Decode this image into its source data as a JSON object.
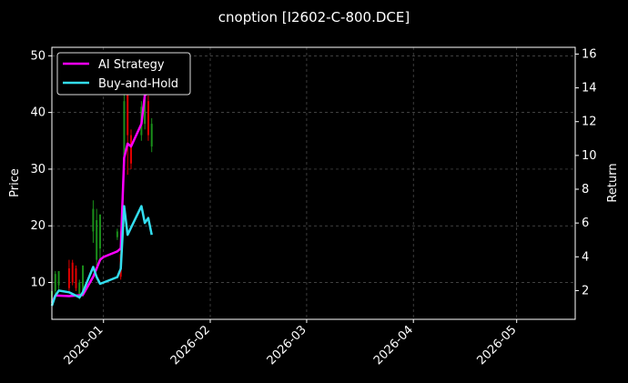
{
  "chart_data": {
    "type": "line",
    "title": "cnoption [I2602-C-800.DCE]",
    "ylabel_left": "Price",
    "ylabel_right": "Return",
    "ylim_left": [
      3.5,
      51.5
    ],
    "ylim_right": [
      0.3,
      16.4
    ],
    "yticks_left": [
      10,
      20,
      30,
      40,
      50
    ],
    "yticks_right": [
      2,
      4,
      6,
      8,
      10,
      12,
      14,
      16
    ],
    "xlim": [
      "2025-12-17",
      "2026-05-18"
    ],
    "xticks": [
      {
        "date": "2026-01-01",
        "label": "2026-01"
      },
      {
        "date": "2026-02-01",
        "label": "2026-02"
      },
      {
        "date": "2026-03-01",
        "label": "2026-03"
      },
      {
        "date": "2026-04-01",
        "label": "2026-04"
      },
      {
        "date": "2026-05-01",
        "label": "2026-05"
      }
    ],
    "grid": true,
    "legend_position": "top-left",
    "candles": [
      {
        "date": "2025-12-17",
        "open": 6.0,
        "close": 8.5,
        "high": 9.0,
        "low": 5.5
      },
      {
        "date": "2025-12-18",
        "open": 8.5,
        "close": 11.5,
        "high": 12.0,
        "low": 8.0
      },
      {
        "date": "2025-12-19",
        "open": 9.5,
        "close": 12.0,
        "high": 12.0,
        "low": 8.5
      },
      {
        "date": "2025-12-22",
        "open": 12.5,
        "close": 9.0,
        "high": 14.0,
        "low": 8.5
      },
      {
        "date": "2025-12-23",
        "open": 13.5,
        "close": 10.0,
        "high": 14.0,
        "low": 9.5
      },
      {
        "date": "2025-12-24",
        "open": 12.5,
        "close": 9.0,
        "high": 13.0,
        "low": 8.5
      },
      {
        "date": "2025-12-25",
        "open": 7.5,
        "close": 10.0,
        "high": 10.5,
        "low": 7.0
      },
      {
        "date": "2025-12-26",
        "open": 8.5,
        "close": 13.0,
        "high": 13.0,
        "low": 7.5
      },
      {
        "date": "2025-12-29",
        "open": 19.0,
        "close": 23.0,
        "high": 24.5,
        "low": 17.0
      },
      {
        "date": "2025-12-30",
        "open": 14.0,
        "close": 21.0,
        "high": 23.0,
        "low": 13.0
      },
      {
        "date": "2025-12-31",
        "open": 16.0,
        "close": 22.0,
        "high": 22.0,
        "low": 14.0
      },
      {
        "date": "2026-01-05",
        "open": 18.0,
        "close": 19.0,
        "high": 19.5,
        "low": 17.5
      },
      {
        "date": "2026-01-06",
        "open": 15.0,
        "close": 11.0,
        "high": 19.0,
        "low": 10.5
      },
      {
        "date": "2026-01-07",
        "open": 32.0,
        "close": 42.0,
        "high": 50.0,
        "low": 30.0
      },
      {
        "date": "2026-01-08",
        "open": 45.0,
        "close": 36.0,
        "high": 50.0,
        "low": 29.0
      },
      {
        "date": "2026-01-09",
        "open": 36.0,
        "close": 31.0,
        "high": 37.0,
        "low": 30.0
      },
      {
        "date": "2026-01-12",
        "open": 36.0,
        "close": 41.0,
        "high": 42.0,
        "low": 35.0
      },
      {
        "date": "2026-01-13",
        "open": 38.0,
        "close": 45.0,
        "high": 46.0,
        "low": 37.0
      },
      {
        "date": "2026-01-14",
        "open": 42.0,
        "close": 36.0,
        "high": 43.0,
        "low": 35.0
      },
      {
        "date": "2026-01-15",
        "open": 34.0,
        "close": 38.0,
        "high": 39.0,
        "low": 33.0
      }
    ],
    "series": [
      {
        "name": "AI Strategy",
        "color": "#ff00ff",
        "axis": "left",
        "points": [
          [
            "2025-12-17",
            6.4
          ],
          [
            "2025-12-18",
            7.7
          ],
          [
            "2025-12-22",
            7.6
          ],
          [
            "2025-12-26",
            7.8
          ],
          [
            "2025-12-29",
            11.0
          ],
          [
            "2025-12-31",
            14.0
          ],
          [
            "2026-01-01",
            14.5
          ],
          [
            "2026-01-05",
            15.5
          ],
          [
            "2026-01-06",
            16.0
          ],
          [
            "2026-01-07",
            32.0
          ],
          [
            "2026-01-08",
            34.5
          ],
          [
            "2026-01-09",
            34.0
          ],
          [
            "2026-01-12",
            38.0
          ],
          [
            "2026-01-13",
            43.0
          ],
          [
            "2026-01-14",
            43.5
          ],
          [
            "2026-01-15",
            45.5
          ]
        ]
      },
      {
        "name": "Buy-and-Hold",
        "color": "#33ddee",
        "axis": "right",
        "points": [
          [
            "2025-12-17",
            1.1
          ],
          [
            "2025-12-18",
            1.7
          ],
          [
            "2025-12-19",
            2.0
          ],
          [
            "2025-12-22",
            1.9
          ],
          [
            "2025-12-24",
            1.7
          ],
          [
            "2025-12-25",
            1.6
          ],
          [
            "2025-12-26",
            1.9
          ],
          [
            "2025-12-29",
            3.4
          ],
          [
            "2025-12-30",
            2.8
          ],
          [
            "2025-12-31",
            2.4
          ],
          [
            "2026-01-05",
            2.8
          ],
          [
            "2026-01-06",
            3.3
          ],
          [
            "2026-01-07",
            7.0
          ],
          [
            "2026-01-08",
            5.3
          ],
          [
            "2026-01-12",
            7.0
          ],
          [
            "2026-01-13",
            6.0
          ],
          [
            "2026-01-14",
            6.3
          ],
          [
            "2026-01-15",
            5.3
          ]
        ]
      }
    ]
  }
}
